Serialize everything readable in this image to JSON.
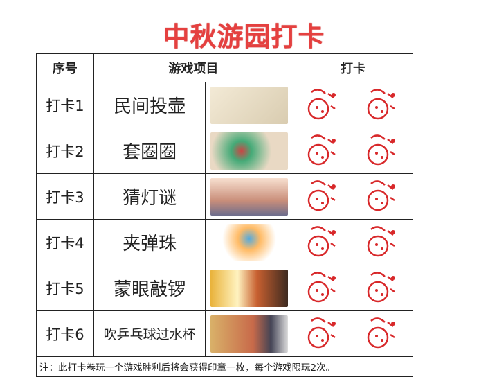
{
  "title": "中秋游园打卡",
  "headers": {
    "no": "序号",
    "game": "游戏项目",
    "checkin": "打卡"
  },
  "rows": [
    {
      "no": "打卡1",
      "game": "民间投壶",
      "image": "pitch-pot-illustration",
      "stamp": "balloon-stamp"
    },
    {
      "no": "打卡2",
      "game": "套圈圈",
      "image": "ring-toss-illustration",
      "stamp": "cherry-stamp"
    },
    {
      "no": "打卡3",
      "game": "猜灯谜",
      "image": "lantern-riddle-illustration",
      "stamp": "strawberry-stamp"
    },
    {
      "no": "打卡4",
      "game": "夹弹珠",
      "image": "marble-pick-illustration",
      "stamp": "watermelon-stamp"
    },
    {
      "no": "打卡5",
      "game": "蒙眼敲锣",
      "image": "blindfold-gong-illustration",
      "stamp": "fruit-stamp"
    },
    {
      "no": "打卡6",
      "game": "吹乒乓球过水杯",
      "image": "ping-pong-cups-photo",
      "stamp": "fruit-stamp"
    }
  ],
  "note": "注：此打卡卷玩一个游戏胜利后将会获得印章一枚，每个游戏限玩2次。",
  "colors": {
    "title": "#e5403f",
    "stamp": "#d8282a"
  }
}
